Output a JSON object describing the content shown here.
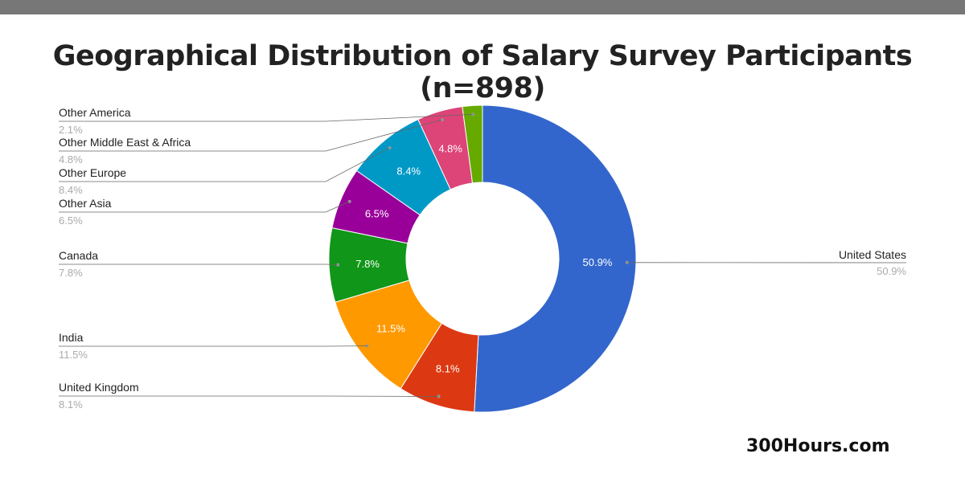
{
  "chart_data": {
    "type": "pie",
    "donut": true,
    "title": "Geographical Distribution of Salary Survey Participants (n=898)",
    "slices": [
      {
        "label": "United States",
        "value": 50.9,
        "display": "50.9%",
        "color": "#3366cc"
      },
      {
        "label": "United Kingdom",
        "value": 8.1,
        "display": "8.1%",
        "color": "#dc3912"
      },
      {
        "label": "India",
        "value": 11.5,
        "display": "11.5%",
        "color": "#ff9900"
      },
      {
        "label": "Canada",
        "value": 7.8,
        "display": "7.8%",
        "color": "#109618"
      },
      {
        "label": "Other Asia",
        "value": 6.5,
        "display": "6.5%",
        "color": "#990099"
      },
      {
        "label": "Other Europe",
        "value": 8.4,
        "display": "8.4%",
        "color": "#0099c6"
      },
      {
        "label": "Other Middle East & Africa",
        "value": 4.8,
        "display": "4.8%",
        "color": "#dd4477"
      },
      {
        "label": "Other America",
        "value": 2.1,
        "display": "2.1%",
        "color": "#66aa00"
      }
    ],
    "legend": "labeled leader lines"
  },
  "footer": {
    "brand": "300Hours.com"
  }
}
